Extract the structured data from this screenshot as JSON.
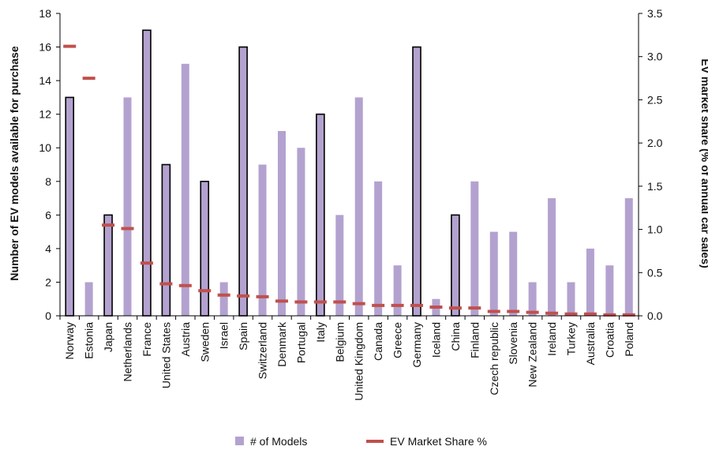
{
  "chart_data": {
    "type": "bar",
    "categories": [
      "Norway",
      "Estonia",
      "Japan",
      "Netherlands",
      "France",
      "United States",
      "Austria",
      "Sweden",
      "Israel",
      "Spain",
      "Switzerland",
      "Denmark",
      "Portugal",
      "Italy",
      "Belgium",
      "United Kingdom",
      "Canada",
      "Greece",
      "Germany",
      "Iceland",
      "China",
      "Finland",
      "Czech republic",
      "Slovenia",
      "New Zealand",
      "Ireland",
      "Turkey",
      "Australia",
      "Croatia",
      "Poland"
    ],
    "series": [
      {
        "name": "# of Models",
        "type": "bar",
        "axis": "left",
        "color": "#b3a2cf",
        "values": [
          13,
          2,
          6,
          13,
          17,
          9,
          15,
          8,
          2,
          16,
          9,
          11,
          10,
          12,
          6,
          13,
          8,
          3,
          16,
          1,
          6,
          8,
          5,
          5,
          2,
          7,
          2,
          4,
          3,
          7
        ],
        "outlined": [
          true,
          false,
          true,
          false,
          true,
          true,
          false,
          true,
          false,
          true,
          false,
          false,
          false,
          true,
          false,
          false,
          false,
          false,
          true,
          false,
          true,
          false,
          false,
          false,
          false,
          false,
          false,
          false,
          false,
          false
        ]
      },
      {
        "name": "EV Market Share %",
        "type": "dash",
        "axis": "right",
        "color": "#c0504d",
        "values": [
          3.12,
          2.75,
          1.05,
          1.01,
          0.61,
          0.37,
          0.35,
          0.29,
          0.24,
          0.23,
          0.22,
          0.17,
          0.16,
          0.16,
          0.16,
          0.14,
          0.12,
          0.12,
          0.12,
          0.1,
          0.09,
          0.09,
          0.05,
          0.05,
          0.04,
          0.03,
          0.02,
          0.02,
          0.01,
          0.01
        ]
      }
    ],
    "ylabel": "Number of EV models available for purchase",
    "y2label": "EV market share (% of annual car sales)",
    "ylim": [
      0,
      18
    ],
    "y2lim": [
      0,
      3.5
    ],
    "yticks": [
      "0",
      "2",
      "4",
      "6",
      "8",
      "10",
      "12",
      "14",
      "16",
      "18"
    ],
    "y2ticks": [
      "0.0",
      "0.5",
      "1.0",
      "1.5",
      "2.0",
      "2.5",
      "3.0",
      "3.5"
    ],
    "legend_position": "bottom",
    "grid": false
  }
}
